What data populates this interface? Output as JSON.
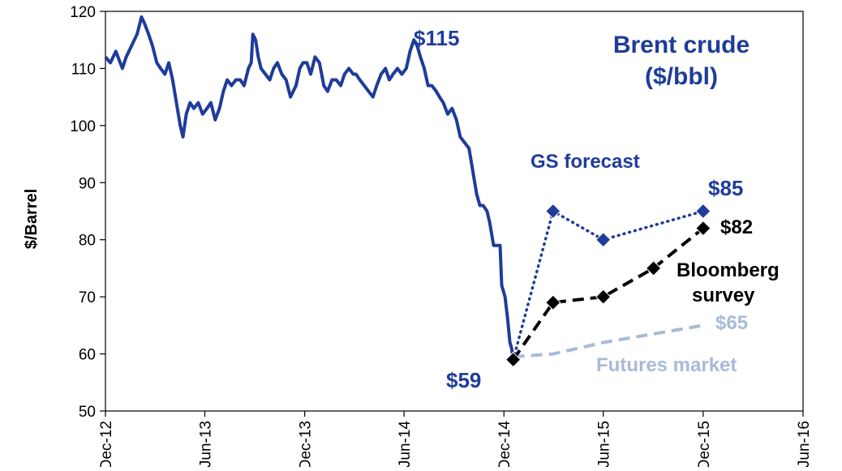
{
  "chart_data": {
    "type": "line",
    "title_lines": [
      "Brent crude",
      "($/bbl)"
    ],
    "xlabel": "",
    "ylabel": "$/Barrel",
    "ylim": [
      50,
      120
    ],
    "yticks": [
      50,
      60,
      70,
      80,
      90,
      100,
      110,
      120
    ],
    "x_ticks": [
      {
        "date": "2012-12-01",
        "label": "Dec-12"
      },
      {
        "date": "2013-06-01",
        "label": "Jun-13"
      },
      {
        "date": "2013-12-01",
        "label": "Dec-13"
      },
      {
        "date": "2014-06-01",
        "label": "Jun-14"
      },
      {
        "date": "2014-12-01",
        "label": "Dec-14"
      },
      {
        "date": "2015-06-01",
        "label": "Jun-15"
      },
      {
        "date": "2015-12-01",
        "label": "Dec-15"
      },
      {
        "date": "2016-06-01",
        "label": "Jun-16"
      }
    ],
    "grid": false,
    "legend": "none",
    "series": [
      {
        "key": "brent",
        "style": "solid",
        "color": "#1f3c99",
        "points": [
          [
            "2012-12-01",
            112
          ],
          [
            "2012-12-10",
            111
          ],
          [
            "2012-12-20",
            113
          ],
          [
            "2013-01-01",
            110
          ],
          [
            "2013-01-08",
            112
          ],
          [
            "2013-01-18",
            114
          ],
          [
            "2013-01-28",
            116
          ],
          [
            "2013-02-05",
            119
          ],
          [
            "2013-02-10",
            118
          ],
          [
            "2013-02-18",
            116
          ],
          [
            "2013-02-25",
            114
          ],
          [
            "2013-03-05",
            111
          ],
          [
            "2013-03-12",
            110
          ],
          [
            "2013-03-20",
            109
          ],
          [
            "2013-03-27",
            111
          ],
          [
            "2013-04-03",
            108
          ],
          [
            "2013-04-10",
            104
          ],
          [
            "2013-04-17",
            100
          ],
          [
            "2013-04-22",
            98
          ],
          [
            "2013-04-28",
            102
          ],
          [
            "2013-05-05",
            104
          ],
          [
            "2013-05-12",
            103
          ],
          [
            "2013-05-20",
            104
          ],
          [
            "2013-05-28",
            102
          ],
          [
            "2013-06-05",
            103
          ],
          [
            "2013-06-12",
            104
          ],
          [
            "2013-06-20",
            101
          ],
          [
            "2013-06-28",
            103
          ],
          [
            "2013-07-05",
            106
          ],
          [
            "2013-07-12",
            108
          ],
          [
            "2013-07-20",
            107
          ],
          [
            "2013-07-28",
            108
          ],
          [
            "2013-08-05",
            108
          ],
          [
            "2013-08-12",
            107
          ],
          [
            "2013-08-20",
            110
          ],
          [
            "2013-08-25",
            111
          ],
          [
            "2013-08-28",
            116
          ],
          [
            "2013-09-02",
            115
          ],
          [
            "2013-09-07",
            112
          ],
          [
            "2013-09-12",
            110
          ],
          [
            "2013-09-20",
            109
          ],
          [
            "2013-09-28",
            108
          ],
          [
            "2013-10-05",
            110
          ],
          [
            "2013-10-12",
            111
          ],
          [
            "2013-10-20",
            109
          ],
          [
            "2013-10-28",
            108
          ],
          [
            "2013-11-05",
            105
          ],
          [
            "2013-11-10",
            106
          ],
          [
            "2013-11-15",
            107
          ],
          [
            "2013-11-22",
            110
          ],
          [
            "2013-11-28",
            111
          ],
          [
            "2013-12-05",
            111
          ],
          [
            "2013-12-12",
            109
          ],
          [
            "2013-12-20",
            112
          ],
          [
            "2013-12-28",
            111
          ],
          [
            "2014-01-05",
            107
          ],
          [
            "2014-01-12",
            106
          ],
          [
            "2014-01-20",
            108
          ],
          [
            "2014-01-28",
            108
          ],
          [
            "2014-02-05",
            107
          ],
          [
            "2014-02-12",
            109
          ],
          [
            "2014-02-20",
            110
          ],
          [
            "2014-02-28",
            109
          ],
          [
            "2014-03-05",
            109
          ],
          [
            "2014-03-12",
            108
          ],
          [
            "2014-03-20",
            107
          ],
          [
            "2014-03-28",
            106
          ],
          [
            "2014-04-05",
            105
          ],
          [
            "2014-04-12",
            107
          ],
          [
            "2014-04-20",
            109
          ],
          [
            "2014-04-28",
            110
          ],
          [
            "2014-05-05",
            108
          ],
          [
            "2014-05-12",
            109
          ],
          [
            "2014-05-20",
            110
          ],
          [
            "2014-05-28",
            109
          ],
          [
            "2014-06-05",
            110
          ],
          [
            "2014-06-12",
            113
          ],
          [
            "2014-06-19",
            115
          ],
          [
            "2014-06-25",
            114
          ],
          [
            "2014-07-01",
            112
          ],
          [
            "2014-07-08",
            110
          ],
          [
            "2014-07-15",
            107
          ],
          [
            "2014-07-22",
            107
          ],
          [
            "2014-07-30",
            106
          ],
          [
            "2014-08-05",
            105
          ],
          [
            "2014-08-12",
            104
          ],
          [
            "2014-08-20",
            102
          ],
          [
            "2014-08-28",
            103
          ],
          [
            "2014-09-05",
            101
          ],
          [
            "2014-09-12",
            98
          ],
          [
            "2014-09-20",
            97
          ],
          [
            "2014-09-28",
            96
          ],
          [
            "2014-10-05",
            92
          ],
          [
            "2014-10-12",
            88
          ],
          [
            "2014-10-18",
            86
          ],
          [
            "2014-10-24",
            86
          ],
          [
            "2014-10-31",
            85
          ],
          [
            "2014-11-05",
            83
          ],
          [
            "2014-11-12",
            79
          ],
          [
            "2014-11-18",
            79
          ],
          [
            "2014-11-24",
            79
          ],
          [
            "2014-11-27",
            72
          ],
          [
            "2014-12-03",
            70
          ],
          [
            "2014-12-08",
            66
          ],
          [
            "2014-12-12",
            62
          ],
          [
            "2014-12-15",
            61
          ],
          [
            "2014-12-18",
            59
          ]
        ]
      },
      {
        "key": "gs",
        "name": "GS forecast",
        "style": "dotted",
        "color": "#1f3c99",
        "points": [
          [
            "2014-12-18",
            59
          ],
          [
            "2015-03-01",
            85
          ],
          [
            "2015-06-01",
            80
          ],
          [
            "2015-12-01",
            85
          ]
        ]
      },
      {
        "key": "bloomberg",
        "name": "Bloomberg survey",
        "style": "dashed",
        "color": "#000000",
        "points": [
          [
            "2014-12-18",
            59
          ],
          [
            "2015-03-01",
            69
          ],
          [
            "2015-06-01",
            70
          ],
          [
            "2015-09-01",
            75
          ],
          [
            "2015-12-01",
            82
          ]
        ]
      },
      {
        "key": "futures",
        "name": "Futures market",
        "style": "dashed",
        "color": "#a9bad8",
        "points": [
          [
            "2014-12-18",
            59.5
          ],
          [
            "2015-03-01",
            60
          ],
          [
            "2015-06-01",
            62
          ],
          [
            "2015-09-01",
            63.5
          ],
          [
            "2015-12-01",
            65
          ]
        ]
      }
    ],
    "annotations": [
      {
        "key": "peak",
        "text": "$115",
        "color": "#1f3c99"
      },
      {
        "key": "low",
        "text": "$59",
        "color": "#1f3c99"
      },
      {
        "key": "gs_label",
        "text": "GS forecast",
        "color": "#1f3c99"
      },
      {
        "key": "gs_end",
        "text": "$85",
        "color": "#1f3c99"
      },
      {
        "key": "bb_end",
        "text": "$82",
        "color": "#000000"
      },
      {
        "key": "bb_label_1",
        "text": "Bloomberg",
        "color": "#000000"
      },
      {
        "key": "bb_label_2",
        "text": "survey",
        "color": "#000000"
      },
      {
        "key": "fut_end",
        "text": "$65",
        "color": "#a9bad8"
      },
      {
        "key": "fut_label",
        "text": "Futures market",
        "color": "#a9bad8"
      }
    ]
  }
}
